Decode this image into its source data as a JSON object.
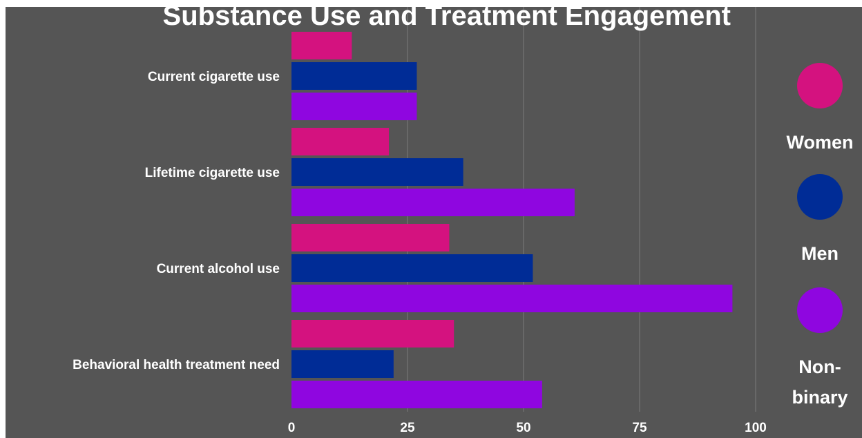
{
  "chart_data": {
    "type": "bar",
    "orientation": "horizontal",
    "title": "Substance Use and Treatment Engagement",
    "categories": [
      "Current cigarette use",
      "Lifetime cigarette use",
      "Current alcohol use",
      "Behavioral health treatment need"
    ],
    "series": [
      {
        "name": "Women",
        "color": "#d4127f",
        "values": [
          13,
          21,
          34,
          35
        ]
      },
      {
        "name": "Men",
        "color": "#002c96",
        "values": [
          27,
          37,
          52,
          22
        ]
      },
      {
        "name": "Non-binary",
        "color": "#8f06e0",
        "values": [
          27,
          61,
          95,
          54
        ]
      }
    ],
    "x_ticks": [
      "0",
      "25",
      "50",
      "75",
      "100"
    ],
    "xlim": [
      0,
      100
    ],
    "grid": true,
    "legend_placement": "right",
    "background_color": "#555555"
  },
  "legend": {
    "women_label": "Women",
    "men_label": "Men",
    "nonbinary_line1": "Non-",
    "nonbinary_line2": "binary"
  }
}
